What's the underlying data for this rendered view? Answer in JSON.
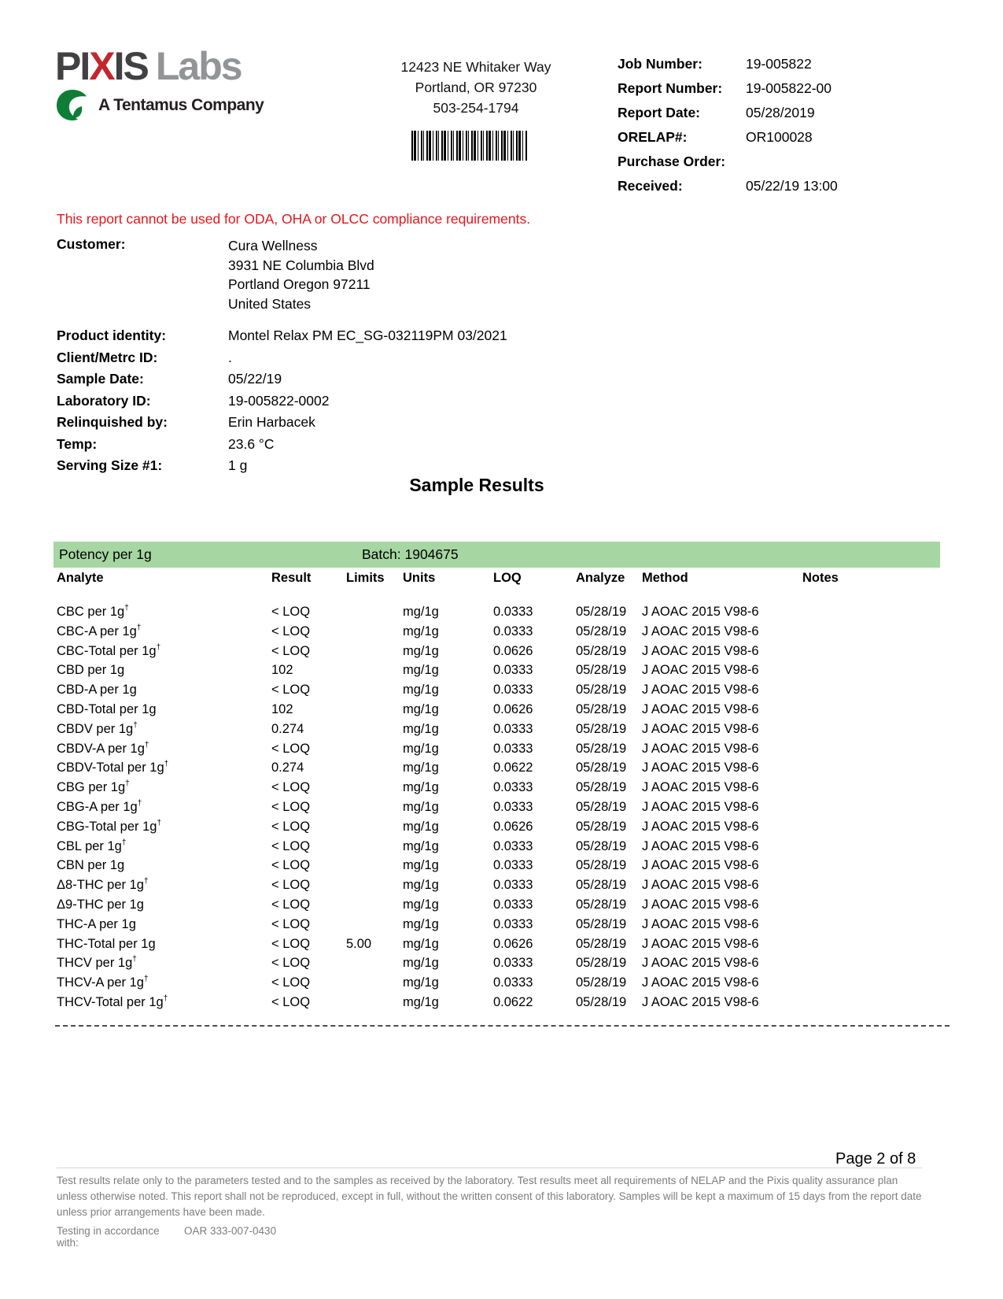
{
  "header": {
    "logo": {
      "text_pi": "PI",
      "text_x": "X",
      "text_is": "IS",
      "text_labs": "Labs",
      "tagline": "A Tentamus Company",
      "red": "#c3262c",
      "dark": "#414042",
      "gray": "#929497",
      "leaf_green": "#0e7d35"
    },
    "address": {
      "line1": "12423 NE Whitaker Way",
      "line2": "Portland, OR 97230",
      "line3": "503-254-1794"
    },
    "job_info": {
      "rows": [
        {
          "label": "Job Number:",
          "value": "19-005822"
        },
        {
          "label": "Report Number:",
          "value": "19-005822-00"
        },
        {
          "label": "Report Date:",
          "value": "05/28/2019"
        },
        {
          "label": "ORELAP#:",
          "value": "OR100028"
        },
        {
          "label": "Purchase Order:",
          "value": ""
        },
        {
          "label": "Received:",
          "value": "05/22/19 13:00"
        }
      ]
    }
  },
  "notice": "This report cannot be used for ODA, OHA or OLCC compliance requirements.",
  "customer": {
    "label": "Customer:",
    "lines": [
      "Cura Wellness",
      "3931 NE Columbia Blvd",
      "Portland Oregon 97211",
      "United States"
    ]
  },
  "sample_info": {
    "rows": [
      {
        "label": "Product identity:",
        "value": "Montel Relax PM EC_SG-032119PM 03/2021"
      },
      {
        "label": "Client/Metrc ID:",
        "value": "."
      },
      {
        "label": "Sample Date:",
        "value": "05/22/19"
      },
      {
        "label": "Laboratory ID:",
        "value": "19-005822-0002"
      },
      {
        "label": "Relinquished by:",
        "value": "Erin Harbacek"
      },
      {
        "label": "Temp:",
        "value": "23.6 °C"
      },
      {
        "label": "Serving Size #1:",
        "value": "1 g"
      }
    ]
  },
  "results": {
    "title": "Sample Results",
    "section_label": "Potency per 1g",
    "batch_label": "Batch: 1904675",
    "section_bar_color": "#a6d6a2",
    "columns": [
      "Analyte",
      "Result",
      "Limits",
      "Units",
      "LOQ",
      "Analyze",
      "Method",
      "Notes"
    ],
    "rows": [
      {
        "analyte": "CBC per 1g†",
        "result": "< LOQ",
        "limits": "",
        "units": "mg/1g",
        "loq": "0.0333",
        "analyze": "05/28/19",
        "method": "J AOAC 2015 V98-6",
        "notes": ""
      },
      {
        "analyte": "CBC-A per 1g†",
        "result": "< LOQ",
        "limits": "",
        "units": "mg/1g",
        "loq": "0.0333",
        "analyze": "05/28/19",
        "method": "J AOAC 2015 V98-6",
        "notes": ""
      },
      {
        "analyte": "CBC-Total per 1g†",
        "result": "< LOQ",
        "limits": "",
        "units": "mg/1g",
        "loq": "0.0626",
        "analyze": "05/28/19",
        "method": "J AOAC 2015 V98-6",
        "notes": ""
      },
      {
        "analyte": "CBD per 1g",
        "result": "102",
        "limits": "",
        "units": "mg/1g",
        "loq": "0.0333",
        "analyze": "05/28/19",
        "method": "J AOAC 2015 V98-6",
        "notes": ""
      },
      {
        "analyte": "CBD-A per 1g",
        "result": "< LOQ",
        "limits": "",
        "units": "mg/1g",
        "loq": "0.0333",
        "analyze": "05/28/19",
        "method": "J AOAC 2015 V98-6",
        "notes": ""
      },
      {
        "analyte": "CBD-Total per 1g",
        "result": "102",
        "limits": "",
        "units": "mg/1g",
        "loq": "0.0626",
        "analyze": "05/28/19",
        "method": "J AOAC 2015 V98-6",
        "notes": ""
      },
      {
        "analyte": "CBDV per 1g†",
        "result": "0.274",
        "limits": "",
        "units": "mg/1g",
        "loq": "0.0333",
        "analyze": "05/28/19",
        "method": "J AOAC 2015 V98-6",
        "notes": ""
      },
      {
        "analyte": "CBDV-A per 1g†",
        "result": "< LOQ",
        "limits": "",
        "units": "mg/1g",
        "loq": "0.0333",
        "analyze": "05/28/19",
        "method": "J AOAC 2015 V98-6",
        "notes": ""
      },
      {
        "analyte": "CBDV-Total per 1g†",
        "result": "0.274",
        "limits": "",
        "units": "mg/1g",
        "loq": "0.0622",
        "analyze": "05/28/19",
        "method": "J AOAC 2015 V98-6",
        "notes": ""
      },
      {
        "analyte": "CBG per 1g†",
        "result": "< LOQ",
        "limits": "",
        "units": "mg/1g",
        "loq": "0.0333",
        "analyze": "05/28/19",
        "method": "J AOAC 2015 V98-6",
        "notes": ""
      },
      {
        "analyte": "CBG-A per 1g†",
        "result": "< LOQ",
        "limits": "",
        "units": "mg/1g",
        "loq": "0.0333",
        "analyze": "05/28/19",
        "method": "J AOAC 2015 V98-6",
        "notes": ""
      },
      {
        "analyte": "CBG-Total per 1g†",
        "result": "< LOQ",
        "limits": "",
        "units": "mg/1g",
        "loq": "0.0626",
        "analyze": "05/28/19",
        "method": "J AOAC 2015 V98-6",
        "notes": ""
      },
      {
        "analyte": "CBL per 1g†",
        "result": "< LOQ",
        "limits": "",
        "units": "mg/1g",
        "loq": "0.0333",
        "analyze": "05/28/19",
        "method": "J AOAC 2015 V98-6",
        "notes": ""
      },
      {
        "analyte": "CBN per 1g",
        "result": "< LOQ",
        "limits": "",
        "units": "mg/1g",
        "loq": "0.0333",
        "analyze": "05/28/19",
        "method": "J AOAC 2015 V98-6",
        "notes": ""
      },
      {
        "analyte": "Δ8-THC per 1g†",
        "result": "< LOQ",
        "limits": "",
        "units": "mg/1g",
        "loq": "0.0333",
        "analyze": "05/28/19",
        "method": "J AOAC 2015 V98-6",
        "notes": ""
      },
      {
        "analyte": "Δ9-THC per 1g",
        "result": "< LOQ",
        "limits": "",
        "units": "mg/1g",
        "loq": "0.0333",
        "analyze": "05/28/19",
        "method": "J AOAC 2015 V98-6",
        "notes": ""
      },
      {
        "analyte": "THC-A per 1g",
        "result": "< LOQ",
        "limits": "",
        "units": "mg/1g",
        "loq": "0.0333",
        "analyze": "05/28/19",
        "method": "J AOAC 2015 V98-6",
        "notes": ""
      },
      {
        "analyte": "THC-Total per 1g",
        "result": "< LOQ",
        "limits": "5.00",
        "units": "mg/1g",
        "loq": "0.0626",
        "analyze": "05/28/19",
        "method": "J AOAC 2015 V98-6",
        "notes": ""
      },
      {
        "analyte": "THCV per 1g†",
        "result": "< LOQ",
        "limits": "",
        "units": "mg/1g",
        "loq": "0.0333",
        "analyze": "05/28/19",
        "method": "J AOAC 2015 V98-6",
        "notes": ""
      },
      {
        "analyte": "THCV-A per 1g†",
        "result": "< LOQ",
        "limits": "",
        "units": "mg/1g",
        "loq": "0.0333",
        "analyze": "05/28/19",
        "method": "J AOAC 2015 V98-6",
        "notes": ""
      },
      {
        "analyte": "THCV-Total per 1g†",
        "result": "< LOQ",
        "limits": "",
        "units": "mg/1g",
        "loq": "0.0622",
        "analyze": "05/28/19",
        "method": "J AOAC 2015 V98-6",
        "notes": ""
      }
    ]
  },
  "footer": {
    "page_label": "Page 2 of 8",
    "disclaimer": "Test results relate only to the parameters tested and to the samples as received by the laboratory. Test results meet all requirements of NELAP and the Pixis quality assurance plan unless otherwise noted. This report shall not be reproduced, except in full, without the written consent of this laboratory. Samples will be kept a maximum of 15 days from the report date unless prior arrangements have been made.",
    "testing_label": "Testing in accordance with:",
    "testing_value": "OAR 333-007-0430"
  }
}
